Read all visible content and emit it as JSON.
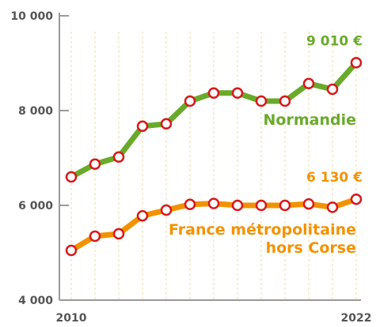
{
  "chart_data": {
    "type": "line",
    "x": [
      2010,
      2011,
      2012,
      2013,
      2014,
      2015,
      2016,
      2017,
      2018,
      2019,
      2020,
      2021,
      2022
    ],
    "xlim": [
      2010,
      2022
    ],
    "xticks": [
      2010,
      2022
    ],
    "ylim": [
      4000,
      10000
    ],
    "yticks": [
      {
        "value": 4000,
        "label": "4 000"
      },
      {
        "value": 6000,
        "label": "6 000"
      },
      {
        "value": 8000,
        "label": "8 000"
      },
      {
        "value": 10000,
        "label": "10 000"
      }
    ],
    "series": [
      {
        "name": "Normandie",
        "color": "#6aaa2a",
        "values": [
          6600,
          6870,
          7020,
          7670,
          7720,
          8200,
          8370,
          8370,
          8200,
          8200,
          8570,
          8450,
          9010
        ],
        "value_labels": [
          null,
          null,
          null,
          null,
          null,
          null,
          null,
          null,
          null,
          null,
          null,
          null,
          "9 010 €"
        ]
      },
      {
        "name": "France métropolitaine hors Corse",
        "color": "#f39200",
        "values": [
          5050,
          5350,
          5400,
          5780,
          5900,
          6020,
          6040,
          6000,
          6000,
          6000,
          6030,
          5960,
          6130
        ],
        "value_labels": [
          null,
          null,
          null,
          null,
          null,
          null,
          null,
          null,
          null,
          null,
          null,
          null,
          "6 130 €"
        ]
      }
    ],
    "marker_edge_color": "#d7191c"
  }
}
